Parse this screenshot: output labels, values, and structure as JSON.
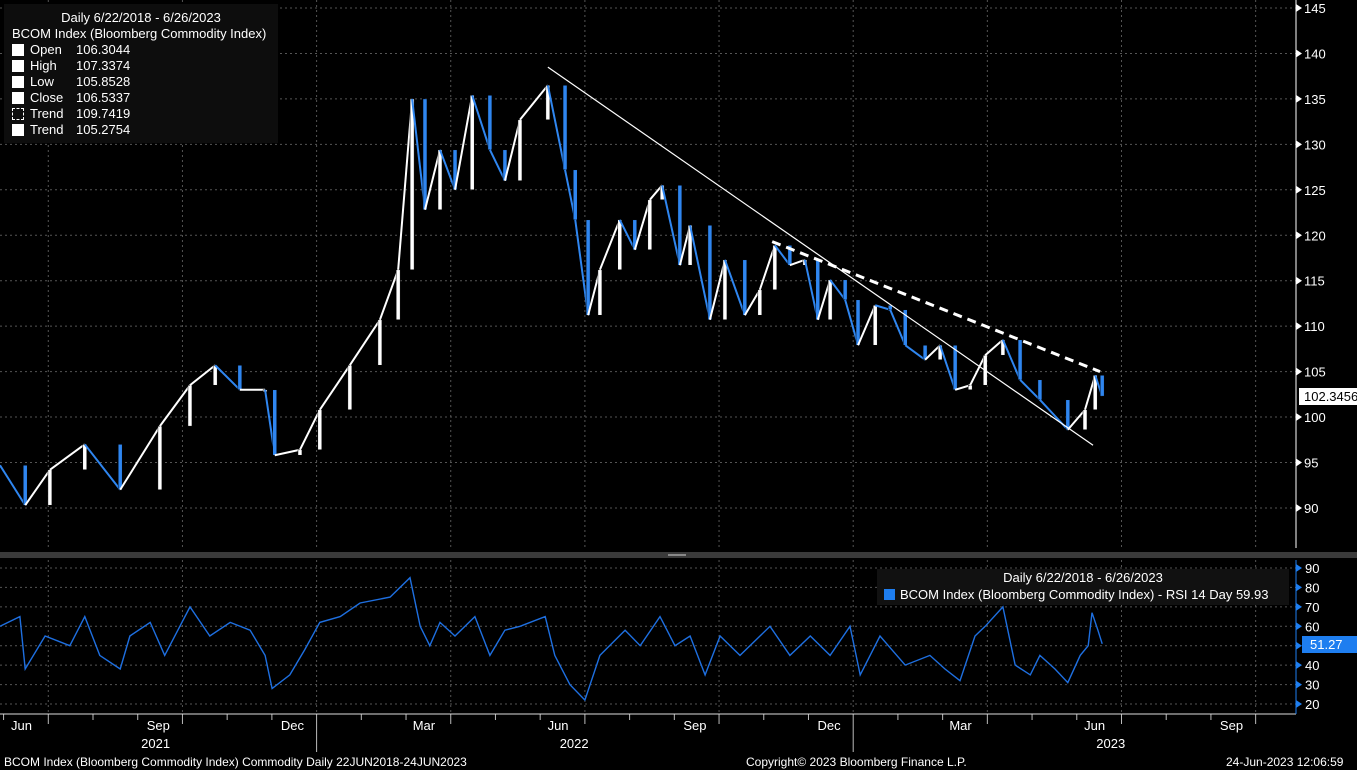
{
  "colors": {
    "up": "#ffffff",
    "down": "#2f86f0",
    "rsi": "#1e6fe0",
    "grid": "#555555",
    "axis": "#1e7ef0"
  },
  "legend": {
    "title": "Daily 6/22/2018 - 6/26/2023",
    "security": "BCOM Index (Bloomberg Commodity Index)",
    "rows": [
      {
        "label": "Open",
        "value": "106.3044"
      },
      {
        "label": "High",
        "value": "107.3374"
      },
      {
        "label": "Low",
        "value": "105.8528"
      },
      {
        "label": "Close",
        "value": "106.5337"
      },
      {
        "label": "Trend",
        "value": "109.7419"
      },
      {
        "label": "Trend",
        "value": "105.2754"
      }
    ]
  },
  "rsi_legend": {
    "title": "Daily 6/22/2018 - 6/26/2023",
    "label": "BCOM Index (Bloomberg Commodity Index) - RSI 14 Day 59.93"
  },
  "last_price": "102.3456",
  "last_rsi": "51.27",
  "footer": {
    "left": "BCOM Index (Bloomberg Commodity Index) Commodity  Daily 22JUN2018-24JUN2023",
    "center": "Copyright© 2023 Bloomberg Finance L.P.",
    "right": "24-Jun-2023 12:06:59"
  },
  "chart_data": [
    {
      "type": "line",
      "title": "BCOM Index daily price",
      "ylim": [
        85,
        146
      ],
      "yticks": [
        90,
        95,
        100,
        105,
        110,
        115,
        120,
        125,
        130,
        135,
        140,
        145
      ],
      "x_unit": "decimal year",
      "points": [
        [
          2021.41,
          94.7
        ],
        [
          2021.457,
          90.3
        ],
        [
          2021.503,
          94.2
        ],
        [
          2021.568,
          97
        ],
        [
          2021.634,
          92
        ],
        [
          2021.708,
          99
        ],
        [
          2021.764,
          103.5
        ],
        [
          2021.811,
          105.7
        ],
        [
          2021.857,
          103
        ],
        [
          2021.904,
          103
        ],
        [
          2021.922,
          95.8
        ],
        [
          2021.969,
          96.4
        ],
        [
          2022.006,
          100.8
        ],
        [
          2022.062,
          105.7
        ],
        [
          2022.118,
          110.7
        ],
        [
          2022.152,
          116.2
        ],
        [
          2022.178,
          135
        ],
        [
          2022.202,
          122.8
        ],
        [
          2022.23,
          129.4
        ],
        [
          2022.258,
          125
        ],
        [
          2022.29,
          135.4
        ],
        [
          2022.323,
          129.4
        ],
        [
          2022.351,
          126
        ],
        [
          2022.379,
          132.7
        ],
        [
          2022.431,
          136.5
        ],
        [
          2022.463,
          127.2
        ],
        [
          2022.482,
          121.7
        ],
        [
          2022.506,
          111.2
        ],
        [
          2022.528,
          116.2
        ],
        [
          2022.565,
          121.7
        ],
        [
          2022.593,
          118.4
        ],
        [
          2022.621,
          123.9
        ],
        [
          2022.644,
          125.5
        ],
        [
          2022.677,
          116.7
        ],
        [
          2022.696,
          121.1
        ],
        [
          2022.733,
          110.7
        ],
        [
          2022.761,
          117.3
        ],
        [
          2022.798,
          111.2
        ],
        [
          2022.826,
          114
        ],
        [
          2022.854,
          118.9
        ],
        [
          2022.882,
          116.7
        ],
        [
          2022.91,
          117.3
        ],
        [
          2022.934,
          110.7
        ],
        [
          2022.957,
          115.1
        ],
        [
          2022.985,
          112.9
        ],
        [
          2023.009,
          107.9
        ],
        [
          2023.041,
          112.3
        ],
        [
          2023.069,
          111.8
        ],
        [
          2023.097,
          107.9
        ],
        [
          2023.134,
          106.3
        ],
        [
          2023.162,
          107.9
        ],
        [
          2023.19,
          103
        ],
        [
          2023.218,
          103.5
        ],
        [
          2023.246,
          106.8
        ],
        [
          2023.279,
          108.5
        ],
        [
          2023.311,
          104.1
        ],
        [
          2023.348,
          101.9
        ],
        [
          2023.4,
          98.6
        ],
        [
          2023.432,
          100.8
        ],
        [
          2023.451,
          104.6
        ],
        [
          2023.464,
          102.3
        ]
      ],
      "trendlines": [
        {
          "name": "Trend",
          "style": "solid",
          "from": [
            2022.431,
            138.5
          ],
          "to": [
            2023.447,
            96.9
          ]
        },
        {
          "name": "Trend",
          "style": "dashed",
          "from": [
            2022.849,
            119.3
          ],
          "to": [
            2023.46,
            105.0
          ]
        }
      ]
    },
    {
      "type": "line",
      "title": "RSI 14 Day",
      "ylim": [
        15,
        92
      ],
      "yticks": [
        20,
        30,
        40,
        50,
        60,
        70,
        80,
        90
      ],
      "x_unit": "decimal year",
      "points": [
        [
          2021.41,
          60
        ],
        [
          2021.447,
          65
        ],
        [
          2021.457,
          38
        ],
        [
          2021.494,
          55
        ],
        [
          2021.54,
          50
        ],
        [
          2021.568,
          65
        ],
        [
          2021.596,
          45
        ],
        [
          2021.634,
          38
        ],
        [
          2021.652,
          55
        ],
        [
          2021.69,
          62
        ],
        [
          2021.717,
          45
        ],
        [
          2021.764,
          70
        ],
        [
          2021.801,
          55
        ],
        [
          2021.839,
          62
        ],
        [
          2021.876,
          58
        ],
        [
          2021.904,
          45
        ],
        [
          2021.917,
          28
        ],
        [
          2021.95,
          35
        ],
        [
          2021.978,
          48
        ],
        [
          2022.006,
          62
        ],
        [
          2022.044,
          65
        ],
        [
          2022.081,
          72
        ],
        [
          2022.137,
          75
        ],
        [
          2022.174,
          85
        ],
        [
          2022.193,
          60
        ],
        [
          2022.211,
          50
        ],
        [
          2022.23,
          62
        ],
        [
          2022.258,
          55
        ],
        [
          2022.295,
          65
        ],
        [
          2022.323,
          45
        ],
        [
          2022.351,
          58
        ],
        [
          2022.379,
          60
        ],
        [
          2022.426,
          65
        ],
        [
          2022.444,
          45
        ],
        [
          2022.472,
          30
        ],
        [
          2022.5,
          22
        ],
        [
          2022.528,
          45
        ],
        [
          2022.575,
          58
        ],
        [
          2022.603,
          50
        ],
        [
          2022.64,
          65
        ],
        [
          2022.668,
          50
        ],
        [
          2022.696,
          55
        ],
        [
          2022.724,
          35
        ],
        [
          2022.752,
          55
        ],
        [
          2022.789,
          45
        ],
        [
          2022.845,
          60
        ],
        [
          2022.882,
          45
        ],
        [
          2022.92,
          55
        ],
        [
          2022.957,
          45
        ],
        [
          2022.994,
          60
        ],
        [
          2023.013,
          35
        ],
        [
          2023.05,
          55
        ],
        [
          2023.097,
          40
        ],
        [
          2023.143,
          45
        ],
        [
          2023.171,
          38
        ],
        [
          2023.199,
          32
        ],
        [
          2023.227,
          55
        ],
        [
          2023.246,
          60
        ],
        [
          2023.279,
          70
        ],
        [
          2023.302,
          40
        ],
        [
          2023.33,
          35
        ],
        [
          2023.348,
          45
        ],
        [
          2023.376,
          38
        ],
        [
          2023.4,
          31
        ],
        [
          2023.423,
          45
        ],
        [
          2023.438,
          50
        ],
        [
          2023.445,
          67
        ],
        [
          2023.456,
          58
        ],
        [
          2023.464,
          51
        ]
      ]
    }
  ],
  "x_axis": {
    "months": [
      {
        "label": "Jun",
        "t": 2021.45
      },
      {
        "label": "Sep",
        "t": 2021.705
      },
      {
        "label": "Dec",
        "t": 2021.955
      },
      {
        "label": "Mar",
        "t": 2022.2
      },
      {
        "label": "Jun",
        "t": 2022.45
      },
      {
        "label": "Sep",
        "t": 2022.705
      },
      {
        "label": "Dec",
        "t": 2022.955
      },
      {
        "label": "Mar",
        "t": 2023.2
      },
      {
        "label": "Jun",
        "t": 2023.45
      },
      {
        "label": "Sep",
        "t": 2023.705
      }
    ],
    "years": [
      {
        "label": "2021",
        "t": 2021.7
      },
      {
        "label": "2022",
        "t": 2022.48
      },
      {
        "label": "2023",
        "t": 2023.48
      }
    ]
  }
}
